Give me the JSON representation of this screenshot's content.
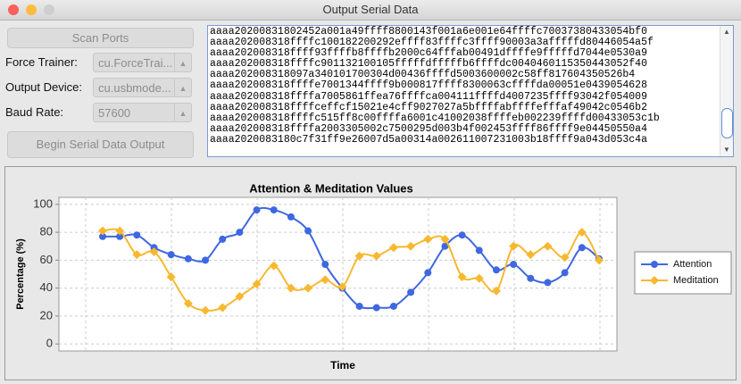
{
  "window": {
    "title": "Output Serial Data"
  },
  "controls": {
    "scan_button": "Scan Ports",
    "force_trainer": {
      "label": "Force Trainer:",
      "value": "cu.ForceTrai..."
    },
    "output_device": {
      "label": "Output Device:",
      "value": "cu.usbmode..."
    },
    "baud_rate": {
      "label": "Baud Rate:",
      "value": "57600"
    },
    "begin_button": "Begin Serial Data Output"
  },
  "serial_output": {
    "lines": [
      "aaaa20200831802452a001a49ffff8800143f001a6e001e64ffffc70037380433054bf0",
      "aaaa202008318ffffc100182200292effff83ffffc3ffff90003a3afffffd80446054a5f",
      "aaaa202008318ffff93ffffb8ffffb2000c64fffab00491dffffe9fffffd7044e0530a9",
      "aaaa202008318ffffc901132100105fffffdfffffb6ffffdc0040460115350443052f40",
      "aaaa202008318097a340101700304d00436ffffd5003600002c58ff817604350526b4",
      "aaaa202008318ffffe7001344ffff9b000817ffff8300063cffffda00051e0439054628",
      "aaaa202008318ffffa7005861ffea76ffffca004111ffffd4007235ffff93042f054009",
      "aaaa202008318ffffceffcf15021e4cff9027027a5bffffabffffefffaf49042c0546b2",
      "aaaa202008318ffffc515ff8c00ffffa6001c41002038ffffeb002239ffffd00433053c1b",
      "aaaa202008318ffffa2003305002c7500295d003b4f002453ffff86ffff9e04450550a4",
      "aaaa2020083180c7f31ff9e26007d5a00314a002611007231003b18ffff9a043d053c4a"
    ]
  },
  "chart_data": {
    "type": "line",
    "title": "Attention & Meditation Values",
    "x_label": "Time",
    "y_label": "Percentage (%)",
    "categories": [
      null,
      null,
      null,
      null,
      null,
      null,
      null,
      null,
      null,
      null,
      null,
      null,
      null,
      null,
      null,
      null,
      null,
      null,
      null,
      null,
      null,
      null,
      null,
      null,
      null,
      null,
      null,
      null,
      null,
      null
    ],
    "series": [
      {
        "name": "Attention",
        "color": "#3f67e0",
        "marker": "circle",
        "values": [
          77,
          77,
          78,
          69,
          64,
          61,
          60,
          75,
          80,
          96,
          96,
          91,
          81,
          57,
          40,
          27,
          26,
          27,
          37,
          51,
          70,
          78,
          67,
          53,
          57,
          47,
          44,
          51,
          69,
          61
        ]
      },
      {
        "name": "Meditation",
        "color": "#f7b830",
        "marker": "diamond",
        "values": [
          81,
          81,
          64,
          66,
          48,
          29,
          24,
          26,
          34,
          43,
          56,
          40,
          40,
          46,
          41,
          63,
          63,
          69,
          70,
          75,
          75,
          48,
          47,
          38,
          70,
          64,
          70,
          62,
          80,
          60
        ]
      }
    ],
    "ylim": [
      -5,
      105
    ],
    "yticks": [
      0,
      20,
      40,
      60,
      80,
      100
    ],
    "grid": true,
    "legend": "right"
  }
}
